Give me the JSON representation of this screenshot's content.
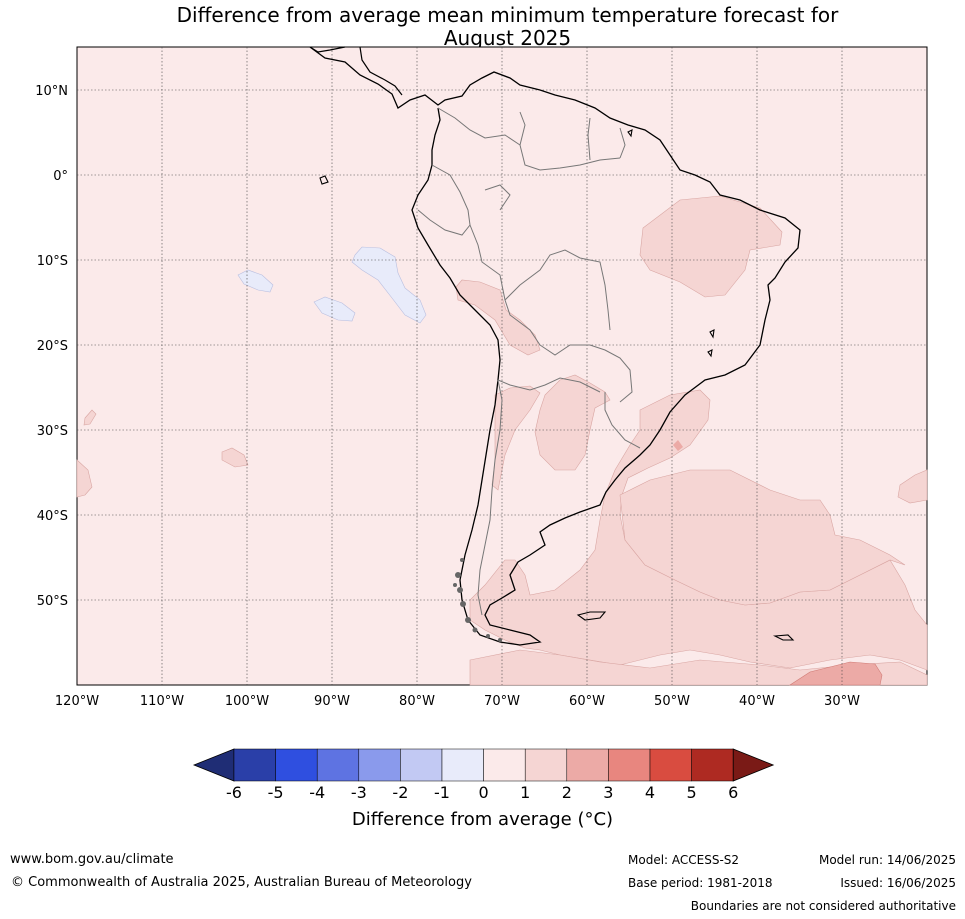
{
  "title_line1": "Difference from average mean minimum temperature forecast for",
  "title_line2": "August 2025",
  "lat_labels": [
    "10°N",
    "0°",
    "10°S",
    "20°S",
    "30°S",
    "40°S",
    "50°S"
  ],
  "lon_labels": [
    "120°W",
    "110°W",
    "100°W",
    "90°W",
    "80°W",
    "70°W",
    "60°W",
    "50°W",
    "40°W",
    "30°W"
  ],
  "colorbar": {
    "ticks": [
      "-6",
      "-5",
      "-4",
      "-3",
      "-2",
      "-1",
      "0",
      "1",
      "2",
      "3",
      "4",
      "5",
      "6"
    ],
    "colors": [
      "#2a3fa8",
      "#2f4fe0",
      "#5e73e2",
      "#8a9aec",
      "#c2c9f3",
      "#e8ebfa",
      "#fbeaea",
      "#f5d5d3",
      "#ecaaa6",
      "#e8867f",
      "#d94c40",
      "#ae2a22"
    ],
    "low_extend_color": "#1f2d75",
    "high_extend_color": "#7a1a16",
    "label": "Difference from average (°C)"
  },
  "footer": {
    "website": "www.bom.gov.au/climate",
    "copyright": "© Commonwealth of Australia 2025, Australian Bureau of Meteorology",
    "model": "Model: ACCESS-S2",
    "base_period": "Base period: 1981-2018",
    "model_run": "Model run: 14/06/2025",
    "issued": "Issued: 16/06/2025",
    "disclaimer": "Boundaries are not considered authoritative"
  }
}
